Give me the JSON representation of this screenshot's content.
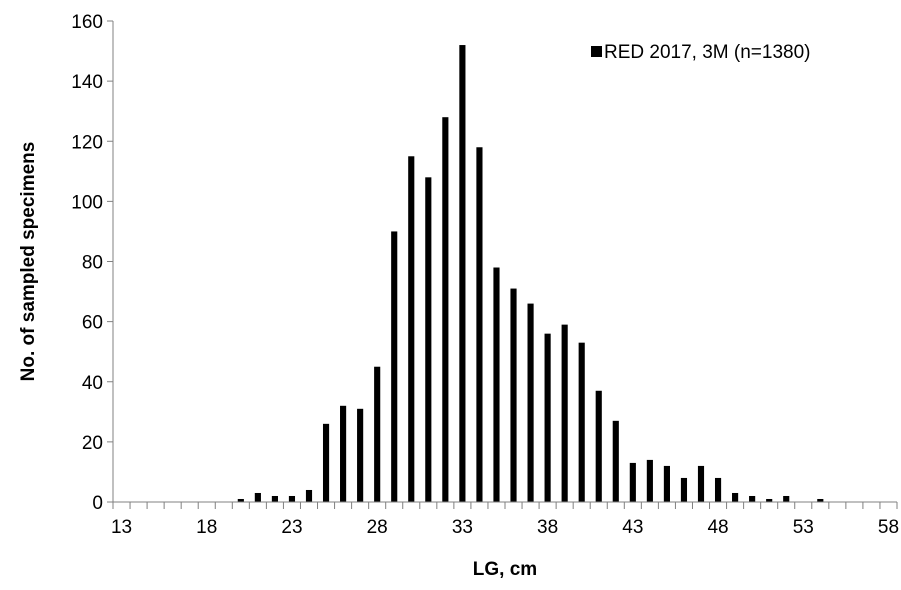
{
  "chart_data": {
    "type": "bar",
    "title": "",
    "xlabel": "LG, cm",
    "ylabel": "No. of sampled specimens",
    "x": [
      13,
      14,
      15,
      16,
      17,
      18,
      19,
      20,
      21,
      22,
      23,
      24,
      25,
      26,
      27,
      28,
      29,
      30,
      31,
      32,
      33,
      34,
      35,
      36,
      37,
      38,
      39,
      40,
      41,
      42,
      43,
      44,
      45,
      46,
      47,
      48,
      49,
      50,
      51,
      52,
      53,
      54,
      55,
      56,
      57,
      58
    ],
    "series": [
      {
        "name": "RED 2017, 3M (n=1380)",
        "color": "#000000",
        "values": [
          0,
          0,
          0,
          0,
          0,
          0,
          0,
          1,
          3,
          2,
          2,
          4,
          26,
          32,
          31,
          45,
          90,
          115,
          108,
          128,
          152,
          118,
          78,
          71,
          66,
          56,
          59,
          53,
          37,
          27,
          13,
          14,
          12,
          8,
          12,
          8,
          3,
          2,
          1,
          2,
          0,
          1,
          0,
          0,
          0,
          0
        ]
      }
    ],
    "xticks": [
      13,
      18,
      23,
      28,
      33,
      38,
      43,
      48,
      53,
      58
    ],
    "ylim": [
      0,
      160
    ],
    "yticks": [
      0,
      20,
      40,
      60,
      80,
      100,
      120,
      140,
      160
    ],
    "grid": false,
    "legend_position": "top-right"
  }
}
